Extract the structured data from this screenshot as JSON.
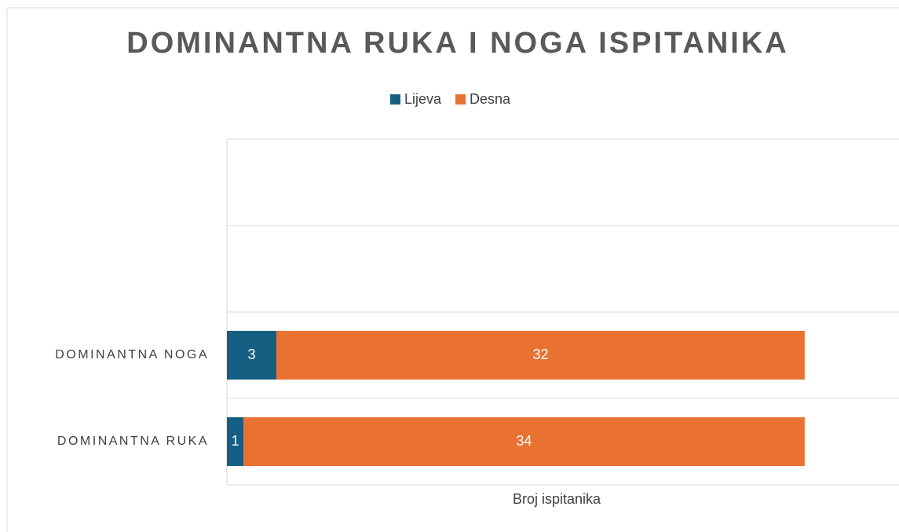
{
  "chart_data": {
    "type": "stacked_barh",
    "title": "DOMINANTNA RUKA I NOGA ISPITANIKA",
    "categories": [
      "DOMINANTNA RUKA",
      "DOMINANTNA NOGA",
      null,
      null
    ],
    "series": [
      {
        "name": "Lijeva",
        "color": "#156082",
        "values": [
          1,
          3,
          null,
          null
        ]
      },
      {
        "name": "Desna",
        "color": "#e97132",
        "values": [
          34,
          32,
          null,
          null
        ]
      }
    ],
    "x_label": "Broj ispitanika",
    "xlim": [
      0,
      40
    ],
    "legend": "top"
  }
}
